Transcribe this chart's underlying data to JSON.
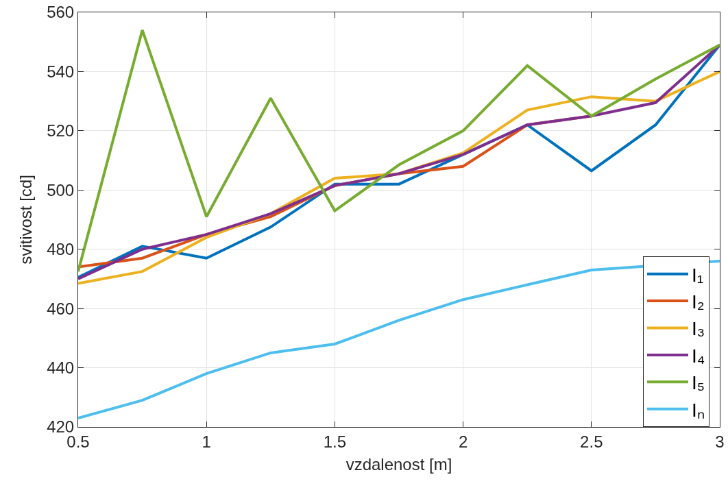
{
  "chart_data": {
    "type": "line",
    "xlabel": "vzdalenost [m]",
    "ylabel": "svitivost [cd]",
    "x": [
      0.5,
      0.75,
      1,
      1.25,
      1.5,
      1.75,
      2,
      2.25,
      2.5,
      2.75,
      3
    ],
    "series": [
      {
        "name": "I₁",
        "color": "#0072bd",
        "values": [
          470.5,
          481,
          477,
          487.5,
          502,
          502,
          512,
          522,
          506.5,
          522,
          549
        ]
      },
      {
        "name": "I₂",
        "color": "#d95319",
        "values": [
          474,
          477,
          485,
          491,
          501.5,
          505.5,
          508,
          522,
          525,
          null,
          null
        ]
      },
      {
        "name": "I₃",
        "color": "#edb120",
        "values": [
          468.5,
          472.5,
          484,
          492,
          504,
          505.5,
          512.5,
          527,
          531.5,
          530,
          540
        ]
      },
      {
        "name": "I₄",
        "color": "#7e2f8e",
        "values": [
          470,
          480,
          485,
          492,
          501.5,
          505.5,
          512,
          522,
          525,
          529.5,
          549
        ]
      },
      {
        "name": "I₅",
        "color": "#77ac30",
        "values": [
          472.5,
          554,
          491,
          531,
          493,
          508.5,
          520,
          542,
          525,
          537.5,
          549
        ]
      },
      {
        "name": "Iₙ",
        "color": "#4dbeee",
        "values": [
          423,
          429,
          438,
          445,
          448,
          456,
          463,
          468,
          473,
          null,
          476
        ]
      }
    ],
    "xlim": [
      0.5,
      3
    ],
    "xticks": [
      0.5,
      1,
      1.5,
      2,
      2.5,
      3
    ],
    "ylim": [
      420,
      560
    ],
    "yticks": [
      420,
      440,
      460,
      480,
      500,
      520,
      540,
      560
    ],
    "grid": true,
    "legend": "bottom right",
    "marker": "none",
    "line_style": "solid"
  }
}
